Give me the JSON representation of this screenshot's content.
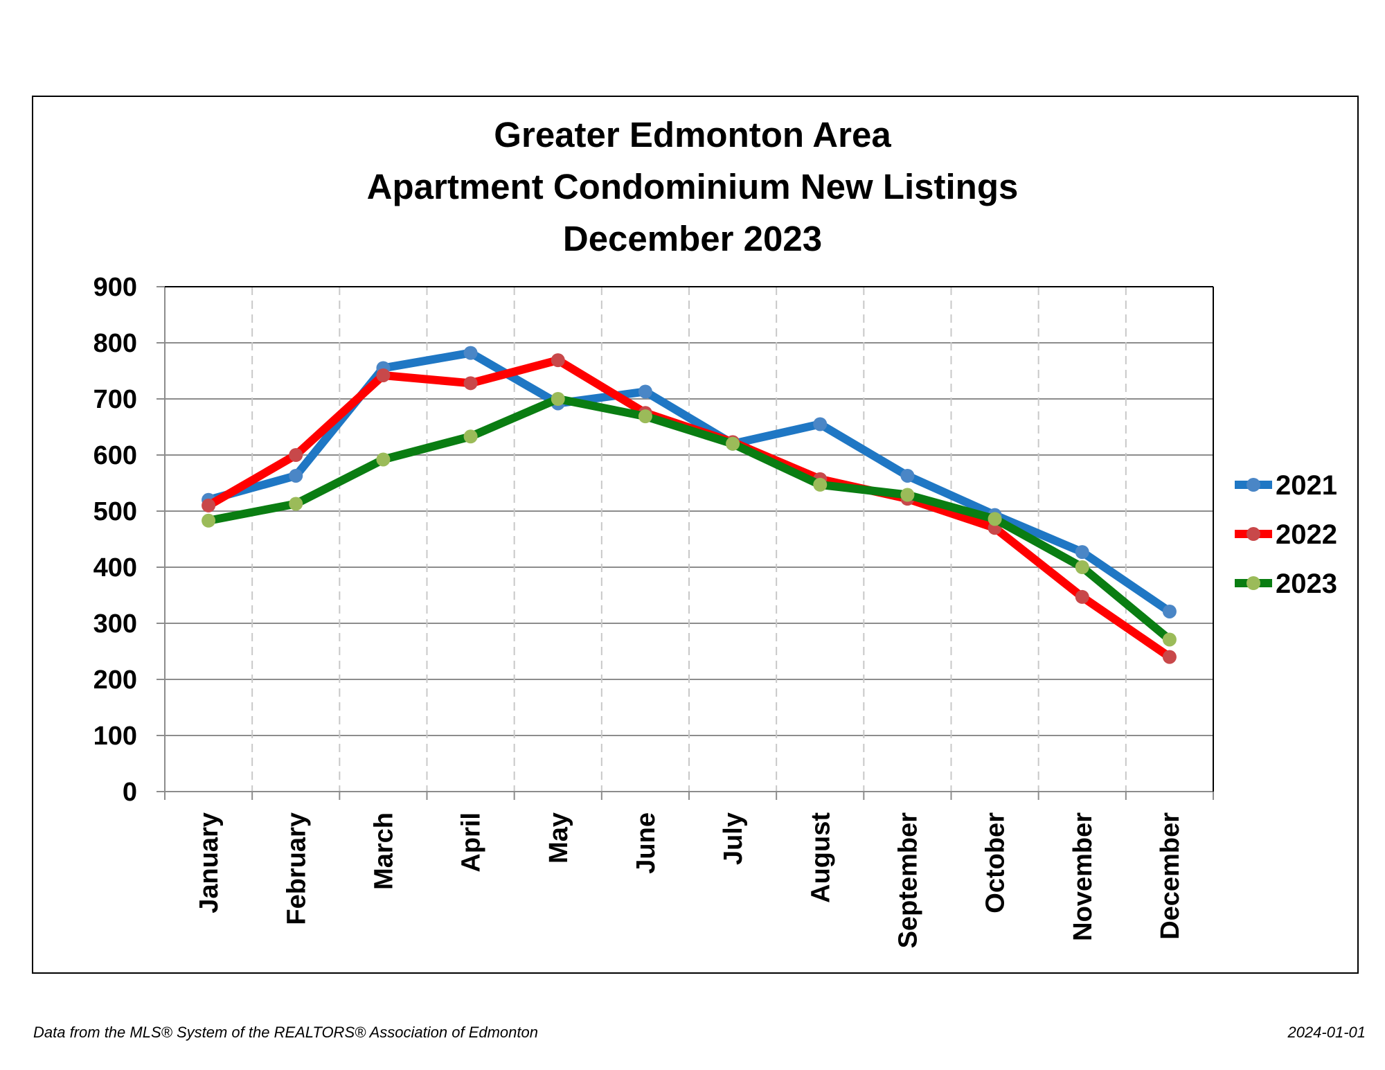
{
  "chart_data": {
    "type": "line",
    "title": [
      "Greater Edmonton Area",
      "Apartment Condominium New Listings",
      "December 2023"
    ],
    "categories": [
      "January",
      "February",
      "March",
      "April",
      "May",
      "June",
      "July",
      "August",
      "September",
      "October",
      "November",
      "December"
    ],
    "ylim": [
      0,
      900
    ],
    "yticks": [
      0,
      100,
      200,
      300,
      400,
      500,
      600,
      700,
      800,
      900
    ],
    "ytick_labels": [
      "0",
      "100",
      "200",
      "300",
      "400",
      "500",
      "600",
      "700",
      "800",
      "900"
    ],
    "grid": {
      "horizontal": true,
      "vertical": "dashed"
    },
    "legend_position": "right",
    "series": [
      {
        "name": "2021",
        "color": "#1f77c4",
        "marker_color": "#4a86c6",
        "values": [
          520,
          563,
          755,
          782,
          692,
          713,
          620,
          655,
          563,
          493,
          427,
          321
        ]
      },
      {
        "name": "2022",
        "color": "#ff0000",
        "marker_color": "#c8484a",
        "values": [
          510,
          600,
          742,
          728,
          769,
          675,
          623,
          557,
          522,
          470,
          347,
          240
        ]
      },
      {
        "name": "2023",
        "color": "#0a7d12",
        "marker_color": "#9bbb59",
        "values": [
          483,
          513,
          592,
          633,
          700,
          669,
          620,
          547,
          529,
          486,
          400,
          271
        ]
      }
    ]
  },
  "footer": {
    "source": "Data from the MLS® System of the REALTORS® Association of Edmonton",
    "date": "2024-01-01"
  }
}
